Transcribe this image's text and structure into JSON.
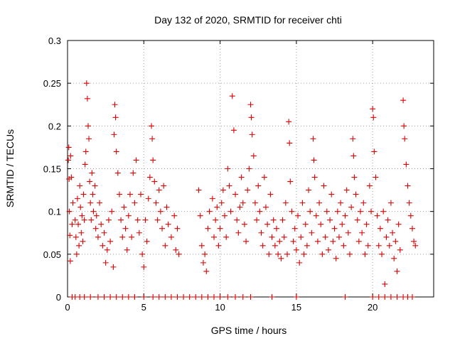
{
  "chart_data": {
    "type": "scatter",
    "title": "Day 132 of 2020, SRMTID for receiver chti",
    "xlabel": "GPS time / hours",
    "ylabel": "SRMTID / TECUs",
    "xlim": [
      0,
      24
    ],
    "ylim": [
      0,
      0.3
    ],
    "xticks": [
      0,
      5,
      10,
      15,
      20
    ],
    "yticks": [
      0,
      0.05,
      0.1,
      0.15,
      0.2,
      0.25,
      0.3
    ],
    "ytick_labels": [
      "0",
      "0.05",
      "0.1",
      "0.15",
      "0.2",
      "0.25",
      "0.3"
    ],
    "grid": true,
    "marker": "+",
    "color": "#dd0000",
    "legend": "none",
    "series": [
      {
        "points": [
          [
            0.05,
            0.16
          ],
          [
            0.08,
            0.175
          ],
          [
            0.1,
            0.138
          ],
          [
            0.12,
            0.1
          ],
          [
            0.15,
            0.072
          ],
          [
            0.18,
            0.042
          ],
          [
            0.2,
            0.165
          ],
          [
            0.25,
            0.14
          ],
          [
            0.3,
            0.085
          ],
          [
            0.35,
            0.11
          ],
          [
            0.5,
            0.09
          ],
          [
            0.55,
            0.07
          ],
          [
            0.6,
            0.05
          ],
          [
            0.65,
            0.115
          ],
          [
            0.7,
            0.085
          ],
          [
            0.75,
            0.06
          ],
          [
            0.8,
            0.13
          ],
          [
            0.85,
            0.105
          ],
          [
            0.9,
            0.075
          ],
          [
            0.95,
            0.095
          ],
          [
            1.0,
            0.065
          ],
          [
            1.05,
            0.12
          ],
          [
            1.1,
            0.09
          ],
          [
            1.15,
            0.155
          ],
          [
            1.2,
            0.17
          ],
          [
            1.25,
            0.25
          ],
          [
            1.3,
            0.232
          ],
          [
            1.35,
            0.2
          ],
          [
            1.4,
            0.185
          ],
          [
            1.45,
            0.135
          ],
          [
            1.5,
            0.11
          ],
          [
            1.55,
            0.09
          ],
          [
            1.6,
            0.145
          ],
          [
            1.65,
            0.12
          ],
          [
            1.7,
            0.1
          ],
          [
            1.8,
            0.13
          ],
          [
            1.85,
            0.08
          ],
          [
            1.9,
            0.095
          ],
          [
            2.0,
            0.07
          ],
          [
            2.1,
            0.11
          ],
          [
            2.2,
            0.085
          ],
          [
            2.3,
            0.06
          ],
          [
            2.4,
            0.075
          ],
          [
            2.5,
            0.04
          ],
          [
            2.6,
            0.055
          ],
          [
            2.7,
            0.09
          ],
          [
            2.8,
            0.065
          ],
          [
            2.9,
            0.1
          ],
          [
            3.0,
            0.035
          ],
          [
            3.05,
            0.19
          ],
          [
            3.1,
            0.225
          ],
          [
            3.15,
            0.21
          ],
          [
            3.2,
            0.17
          ],
          [
            3.3,
            0.145
          ],
          [
            3.4,
            0.12
          ],
          [
            3.5,
            0.09
          ],
          [
            3.6,
            0.07
          ],
          [
            3.7,
            0.105
          ],
          [
            3.8,
            0.08
          ],
          [
            3.9,
            0.055
          ],
          [
            4.0,
            0.095
          ],
          [
            4.1,
            0.12
          ],
          [
            4.2,
            0.07
          ],
          [
            4.3,
            0.145
          ],
          [
            4.4,
            0.11
          ],
          [
            4.5,
            0.16
          ],
          [
            4.6,
            0.09
          ],
          [
            4.7,
            0.075
          ],
          [
            4.8,
            0.12
          ],
          [
            4.9,
            0.05
          ],
          [
            5.0,
            0.035
          ],
          [
            5.1,
            0.09
          ],
          [
            5.2,
            0.065
          ],
          [
            5.3,
            0.115
          ],
          [
            5.4,
            0.14
          ],
          [
            5.5,
            0.2
          ],
          [
            5.55,
            0.185
          ],
          [
            5.6,
            0.16
          ],
          [
            5.7,
            0.135
          ],
          [
            5.8,
            0.11
          ],
          [
            5.9,
            0.09
          ],
          [
            6.0,
            0.125
          ],
          [
            6.1,
            0.1
          ],
          [
            6.2,
            0.08
          ],
          [
            6.3,
            0.13
          ],
          [
            6.4,
            0.06
          ],
          [
            6.5,
            0.105
          ],
          [
            6.6,
            0.085
          ],
          [
            6.8,
            0.07
          ],
          [
            7.0,
            0.095
          ],
          [
            7.1,
            0.055
          ],
          [
            7.2,
            0.08
          ],
          [
            7.3,
            0.05
          ],
          [
            8.6,
            0.125
          ],
          [
            8.7,
            0.095
          ],
          [
            8.8,
            0.06
          ],
          [
            8.9,
            0.04
          ],
          [
            9.0,
            0.05
          ],
          [
            9.1,
            0.03
          ],
          [
            9.2,
            0.08
          ],
          [
            9.3,
            0.1
          ],
          [
            9.5,
            0.115
          ],
          [
            9.6,
            0.07
          ],
          [
            9.7,
            0.09
          ],
          [
            9.8,
            0.105
          ],
          [
            9.9,
            0.06
          ],
          [
            10.0,
            0.08
          ],
          [
            10.1,
            0.11
          ],
          [
            10.2,
            0.125
          ],
          [
            10.3,
            0.095
          ],
          [
            10.4,
            0.07
          ],
          [
            10.5,
            0.15
          ],
          [
            10.6,
            0.13
          ],
          [
            10.7,
            0.1
          ],
          [
            10.8,
            0.235
          ],
          [
            10.9,
            0.195
          ],
          [
            11.0,
            0.12
          ],
          [
            11.1,
            0.09
          ],
          [
            11.2,
            0.075
          ],
          [
            11.3,
            0.105
          ],
          [
            11.4,
            0.14
          ],
          [
            11.5,
            0.11
          ],
          [
            11.6,
            0.085
          ],
          [
            11.7,
            0.065
          ],
          [
            11.8,
            0.125
          ],
          [
            11.9,
            0.15
          ],
          [
            12.0,
            0.225
          ],
          [
            12.05,
            0.21
          ],
          [
            12.1,
            0.19
          ],
          [
            12.2,
            0.165
          ],
          [
            12.3,
            0.11
          ],
          [
            12.4,
            0.09
          ],
          [
            12.5,
            0.13
          ],
          [
            12.6,
            0.1
          ],
          [
            12.7,
            0.075
          ],
          [
            12.8,
            0.06
          ],
          [
            12.9,
            0.14
          ],
          [
            13.0,
            0.105
          ],
          [
            13.1,
            0.085
          ],
          [
            13.2,
            0.05
          ],
          [
            13.3,
            0.12
          ],
          [
            13.4,
            0.07
          ],
          [
            13.5,
            0.09
          ],
          [
            13.6,
            0.06
          ],
          [
            13.7,
            0.08
          ],
          [
            13.8,
            0.05
          ],
          [
            13.9,
            0.065
          ],
          [
            14.0,
            0.045
          ],
          [
            14.1,
            0.09
          ],
          [
            14.2,
            0.07
          ],
          [
            14.3,
            0.11
          ],
          [
            14.4,
            0.05
          ],
          [
            14.5,
            0.205
          ],
          [
            14.55,
            0.18
          ],
          [
            14.6,
            0.135
          ],
          [
            14.7,
            0.1
          ],
          [
            14.8,
            0.065
          ],
          [
            14.9,
            0.08
          ],
          [
            15.0,
            0.055
          ],
          [
            15.1,
            0.095
          ],
          [
            15.2,
            0.04
          ],
          [
            15.3,
            0.07
          ],
          [
            15.4,
            0.11
          ],
          [
            15.5,
            0.05
          ],
          [
            15.6,
            0.085
          ],
          [
            15.7,
            0.06
          ],
          [
            15.8,
            0.125
          ],
          [
            15.9,
            0.1
          ],
          [
            16.0,
            0.075
          ],
          [
            16.1,
            0.185
          ],
          [
            16.15,
            0.16
          ],
          [
            16.2,
            0.14
          ],
          [
            16.3,
            0.095
          ],
          [
            16.4,
            0.065
          ],
          [
            16.5,
            0.11
          ],
          [
            16.6,
            0.085
          ],
          [
            16.7,
            0.05
          ],
          [
            16.8,
            0.13
          ],
          [
            16.9,
            0.07
          ],
          [
            17.0,
            0.1
          ],
          [
            17.1,
            0.055
          ],
          [
            17.2,
            0.09
          ],
          [
            17.3,
            0.12
          ],
          [
            17.4,
            0.065
          ],
          [
            17.5,
            0.08
          ],
          [
            17.6,
            0.045
          ],
          [
            17.7,
            0.1
          ],
          [
            17.8,
            0.07
          ],
          [
            17.9,
            0.11
          ],
          [
            18.0,
            0.085
          ],
          [
            18.1,
            0.06
          ],
          [
            18.2,
            0.095
          ],
          [
            18.3,
            0.125
          ],
          [
            18.4,
            0.075
          ],
          [
            18.5,
            0.05
          ],
          [
            18.6,
            0.105
          ],
          [
            18.7,
            0.185
          ],
          [
            18.75,
            0.165
          ],
          [
            18.8,
            0.14
          ],
          [
            18.9,
            0.12
          ],
          [
            19.0,
            0.09
          ],
          [
            19.1,
            0.065
          ],
          [
            19.2,
            0.1
          ],
          [
            19.3,
            0.075
          ],
          [
            19.4,
            0.11
          ],
          [
            19.5,
            0.05
          ],
          [
            19.6,
            0.085
          ],
          [
            19.7,
            0.06
          ],
          [
            19.8,
            0.13
          ],
          [
            19.9,
            0.1
          ],
          [
            20.0,
            0.22
          ],
          [
            20.05,
            0.21
          ],
          [
            20.1,
            0.17
          ],
          [
            20.2,
            0.14
          ],
          [
            20.3,
            0.095
          ],
          [
            20.4,
            0.06
          ],
          [
            20.5,
            0.08
          ],
          [
            20.6,
            0.05
          ],
          [
            20.7,
            0.1
          ],
          [
            20.8,
            0.015
          ],
          [
            20.9,
            0.07
          ],
          [
            21.0,
            0.09
          ],
          [
            21.1,
            0.06
          ],
          [
            21.2,
            0.11
          ],
          [
            21.3,
            0.075
          ],
          [
            21.4,
            0.045
          ],
          [
            21.5,
            0.065
          ],
          [
            21.6,
            0.03
          ],
          [
            21.7,
            0.085
          ],
          [
            21.8,
            0.055
          ],
          [
            22.0,
            0.23
          ],
          [
            22.05,
            0.2
          ],
          [
            22.1,
            0.185
          ],
          [
            22.2,
            0.155
          ],
          [
            22.3,
            0.13
          ],
          [
            22.4,
            0.11
          ],
          [
            22.5,
            0.095
          ],
          [
            22.6,
            0.08
          ],
          [
            22.7,
            0.065
          ],
          [
            22.8,
            0.06
          ],
          [
            0.3,
            0.0
          ],
          [
            0.5,
            0.0
          ],
          [
            0.8,
            0.0
          ],
          [
            1.1,
            0.0
          ],
          [
            1.5,
            0.0
          ],
          [
            2.0,
            0.0
          ],
          [
            2.4,
            0.0
          ],
          [
            2.8,
            0.0
          ],
          [
            3.2,
            0.0
          ],
          [
            3.6,
            0.0
          ],
          [
            4.0,
            0.0
          ],
          [
            4.4,
            0.0
          ],
          [
            5.0,
            0.0
          ],
          [
            5.6,
            0.0
          ],
          [
            6.0,
            0.0
          ],
          [
            6.4,
            0.0
          ],
          [
            6.8,
            0.0
          ],
          [
            7.2,
            0.0
          ],
          [
            7.6,
            0.0
          ],
          [
            8.0,
            0.0
          ],
          [
            8.4,
            0.0
          ],
          [
            8.8,
            0.0
          ],
          [
            9.2,
            0.0
          ],
          [
            9.6,
            0.0
          ],
          [
            10.0,
            0.0
          ],
          [
            10.5,
            0.0
          ],
          [
            11.0,
            0.0
          ],
          [
            11.5,
            0.0
          ],
          [
            12.0,
            0.0
          ],
          [
            13.4,
            0.0
          ],
          [
            15.0,
            0.0
          ],
          [
            18.2,
            0.0
          ],
          [
            20.0,
            0.0
          ],
          [
            20.4,
            0.0
          ],
          [
            20.8,
            0.0
          ],
          [
            21.2,
            0.0
          ],
          [
            21.6,
            0.0
          ],
          [
            22.0,
            0.0
          ],
          [
            22.3,
            0.0
          ],
          [
            22.6,
            0.0
          ]
        ]
      }
    ]
  }
}
